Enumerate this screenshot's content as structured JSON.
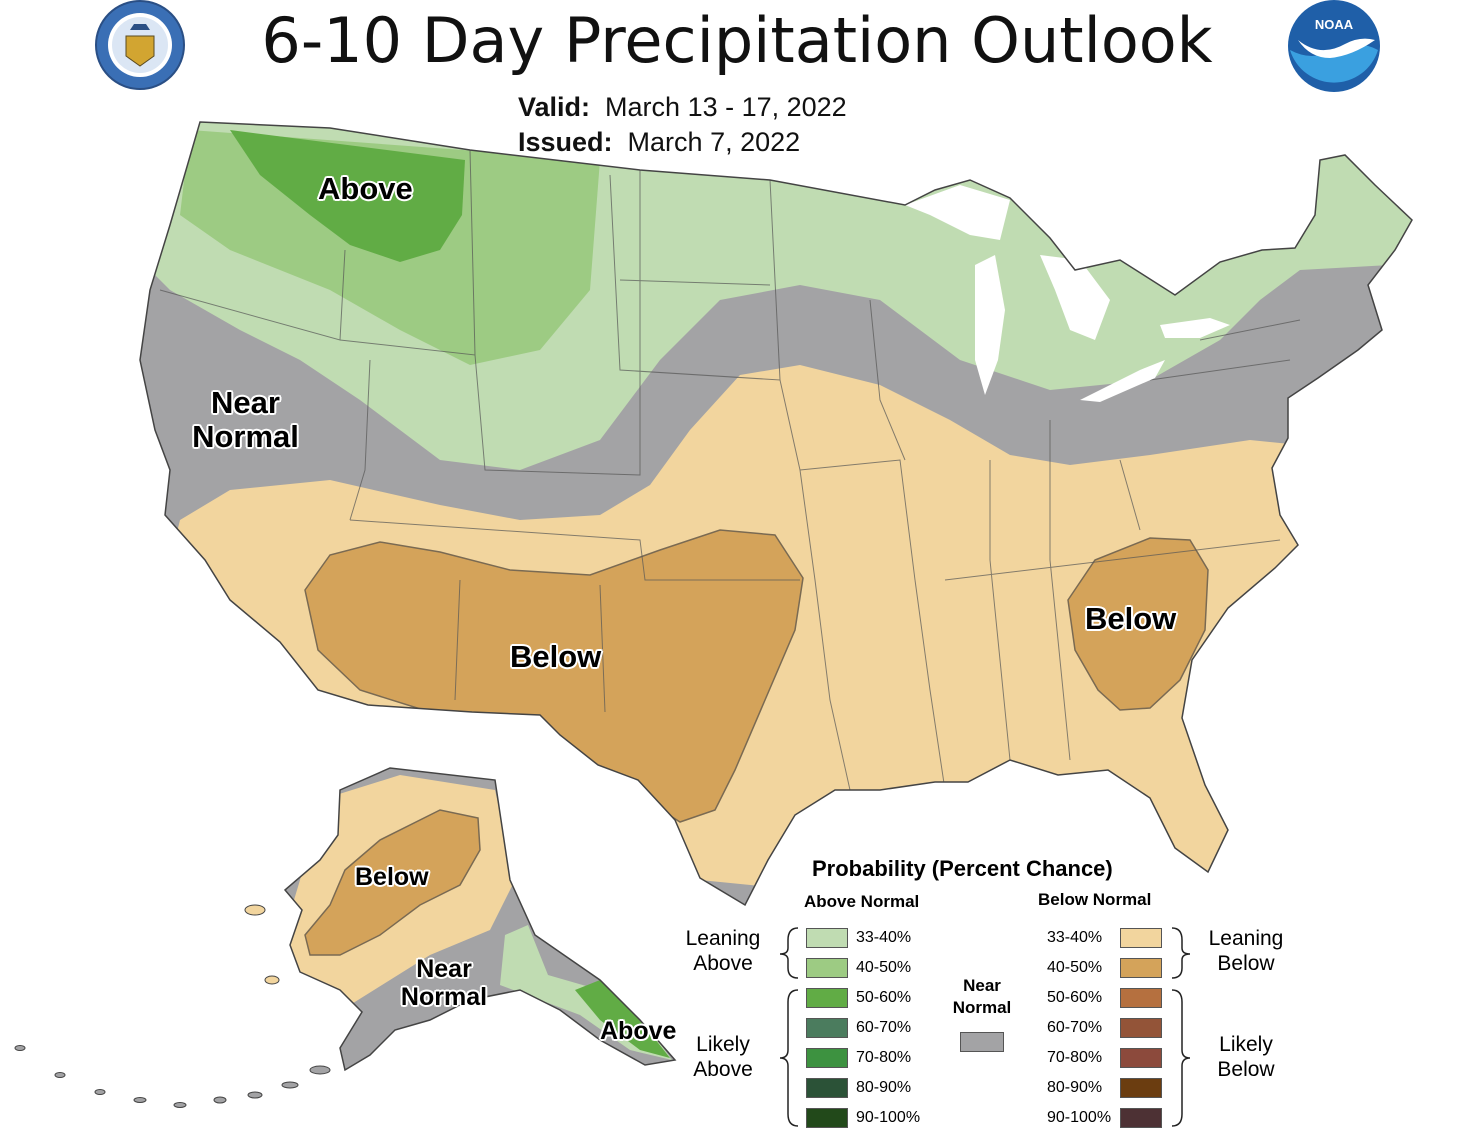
{
  "header": {
    "title": "6-10 Day Precipitation Outlook",
    "valid_label": "Valid:",
    "valid_value": "March 13 - 17, 2022",
    "issued_label": "Issued:",
    "issued_value": "March 7, 2022"
  },
  "logos": {
    "commerce": "department-of-commerce-seal",
    "commerce_ring_text": "DEPARTMENT OF COMMERCE · UNITED STATES OF AMERICA",
    "noaa": "noaa-logo",
    "noaa_text": "NOAA"
  },
  "map_labels": {
    "conus_above": "Above",
    "conus_near_1": "Near",
    "conus_near_2": "Normal",
    "conus_below_southwest": "Below",
    "conus_below_southeast": "Below",
    "alaska_below": "Below",
    "alaska_near_1": "Near",
    "alaska_near_2": "Normal",
    "alaska_above": "Above"
  },
  "legend": {
    "title": "Probability (Percent Chance)",
    "above_header": "Above Normal",
    "below_header": "Below Normal",
    "near_1": "Near",
    "near_2": "Normal",
    "leaning_above_1": "Leaning",
    "leaning_above_2": "Above",
    "likely_above_1": "Likely",
    "likely_above_2": "Above",
    "leaning_below_1": "Leaning",
    "leaning_below_2": "Below",
    "likely_below_1": "Likely",
    "likely_below_2": "Below",
    "above": [
      {
        "label": "33-40%",
        "color": "#c0dcb2"
      },
      {
        "label": "40-50%",
        "color": "#9dcb83"
      },
      {
        "label": "50-60%",
        "color": "#61ac45"
      },
      {
        "label": "60-70%",
        "color": "#4b7c5e"
      },
      {
        "label": "70-80%",
        "color": "#3d9240"
      },
      {
        "label": "80-90%",
        "color": "#2b5237"
      },
      {
        "label": "90-100%",
        "color": "#22491a"
      }
    ],
    "below": [
      {
        "label": "33-40%",
        "color": "#f2d59e"
      },
      {
        "label": "40-50%",
        "color": "#d4a35a"
      },
      {
        "label": "50-60%",
        "color": "#b5703f"
      },
      {
        "label": "60-70%",
        "color": "#935438"
      },
      {
        "label": "70-80%",
        "color": "#8c4a3c"
      },
      {
        "label": "80-90%",
        "color": "#6b3d10"
      },
      {
        "label": "90-100%",
        "color": "#4d3134"
      }
    ],
    "near_color": "#a3a3a5"
  }
}
